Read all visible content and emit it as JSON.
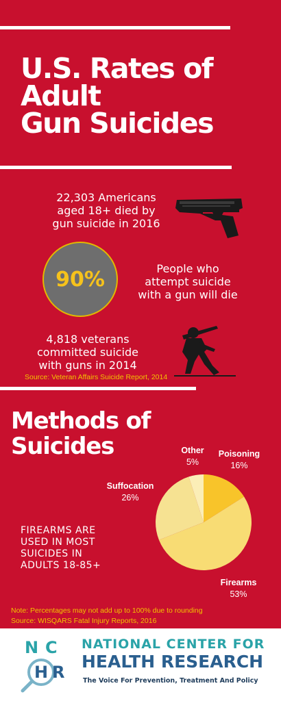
{
  "title": [
    "U.S. Rates of",
    "Adult",
    "Gun Suicides"
  ],
  "stat1": [
    "22,303 Americans",
    "aged 18+ died by",
    "gun suicide in 2016"
  ],
  "circle_value": "90%",
  "stat2": [
    "People who",
    "attempt suicide",
    "with a gun will die"
  ],
  "stat3": [
    "4,818 veterans",
    "committed suicide",
    "with guns in 2014"
  ],
  "source1": "Source: Veteran Affairs Suicide Report, 2014",
  "methods_title": [
    "Methods of",
    "Suicides"
  ],
  "callout": [
    "FIREARMS ARE",
    "USED IN MOST",
    "SUICIDES IN",
    "ADULTS  18-85+"
  ],
  "chart_data": {
    "type": "pie",
    "categories": [
      "Poisoning",
      "Firearms",
      "Suffocation",
      "Other"
    ],
    "values": [
      16,
      53,
      26,
      5
    ],
    "value_labels": [
      "16%",
      "53%",
      "26%",
      "5%"
    ],
    "colors": [
      "#f8c42a",
      "#f8dc74",
      "#f6e292",
      "#fbeeb7"
    ]
  },
  "note": "Note: Percentages may not add up to 100% due to rounding",
  "source2": "Source: WISQARS Fatal Injury Reports, 2016",
  "footer": {
    "logo_letters": [
      "N",
      "C",
      "H",
      "R"
    ],
    "org_line1": "NATIONAL CENTER FOR",
    "org_line2": "HEALTH RESEARCH",
    "tagline": "The Voice For Prevention, Treatment And Policy"
  },
  "colors": {
    "background": "#c8102e",
    "accent_yellow": "#f6c21c",
    "teal": "#2aa3a8",
    "navy": "#2a5f8f"
  }
}
